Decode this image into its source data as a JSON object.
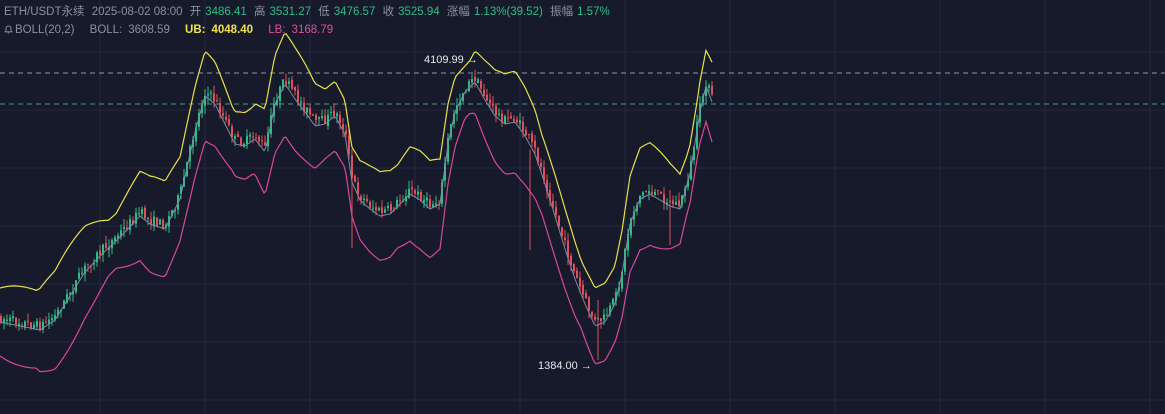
{
  "header": {
    "symbol": "ETH/USDT永续",
    "datetime": "2025-08-02 08:00",
    "open_label": "开",
    "open_value": "3486.41",
    "high_label": "高",
    "high_value": "3531.27",
    "low_label": "低",
    "low_value": "3476.57",
    "close_label": "收",
    "close_value": "3525.94",
    "change_label": "涨幅",
    "change_value": "1.13%(39.52)",
    "amplitude_label": "振幅",
    "amplitude_value": "1.57%"
  },
  "indicator": {
    "icon": "bell-icon",
    "name": "BOLL(20,2)",
    "boll_label": "BOLL:",
    "boll_value": "3608.59",
    "ub_label": "UB:",
    "ub_value": "4048.40",
    "lb_label": "LB:",
    "lb_value": "3168.79"
  },
  "annotations": {
    "high_marker": "4109.99",
    "low_marker": "1384.00"
  },
  "colors": {
    "background": "#161a2b",
    "grid": "#232840",
    "up": "#2ebd85",
    "down": "#e0515d",
    "ub_line": "#e8e04a",
    "mid_line": "#7d8aa6",
    "lb_line": "#d9479a",
    "text_muted": "#8b90a0",
    "text_green": "#2ebd85",
    "dashed_white": "#b9bdc9",
    "dashed_cyan": "#4fa3a0"
  }
}
